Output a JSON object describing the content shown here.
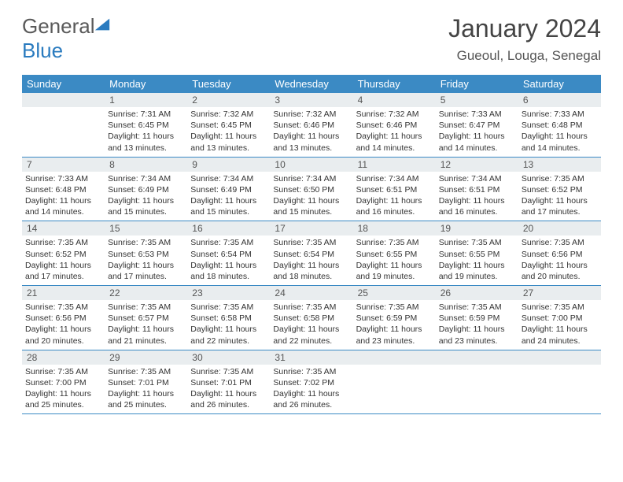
{
  "brand": {
    "text1": "General",
    "text2": "Blue"
  },
  "title": "January 2024",
  "location": "Gueoul, Louga, Senegal",
  "colors": {
    "header_bg": "#3b8ac4",
    "daynum_bg": "#e9edef",
    "text": "#333333",
    "brand_gray": "#5a5a5a",
    "brand_blue": "#2a7bbf"
  },
  "weekdays": [
    "Sunday",
    "Monday",
    "Tuesday",
    "Wednesday",
    "Thursday",
    "Friday",
    "Saturday"
  ],
  "weeks": [
    {
      "nums": [
        "",
        "1",
        "2",
        "3",
        "4",
        "5",
        "6"
      ],
      "cells": [
        null,
        {
          "sunrise": "Sunrise: 7:31 AM",
          "sunset": "Sunset: 6:45 PM",
          "daylight": "Daylight: 11 hours and 13 minutes."
        },
        {
          "sunrise": "Sunrise: 7:32 AM",
          "sunset": "Sunset: 6:45 PM",
          "daylight": "Daylight: 11 hours and 13 minutes."
        },
        {
          "sunrise": "Sunrise: 7:32 AM",
          "sunset": "Sunset: 6:46 PM",
          "daylight": "Daylight: 11 hours and 13 minutes."
        },
        {
          "sunrise": "Sunrise: 7:32 AM",
          "sunset": "Sunset: 6:46 PM",
          "daylight": "Daylight: 11 hours and 14 minutes."
        },
        {
          "sunrise": "Sunrise: 7:33 AM",
          "sunset": "Sunset: 6:47 PM",
          "daylight": "Daylight: 11 hours and 14 minutes."
        },
        {
          "sunrise": "Sunrise: 7:33 AM",
          "sunset": "Sunset: 6:48 PM",
          "daylight": "Daylight: 11 hours and 14 minutes."
        }
      ]
    },
    {
      "nums": [
        "7",
        "8",
        "9",
        "10",
        "11",
        "12",
        "13"
      ],
      "cells": [
        {
          "sunrise": "Sunrise: 7:33 AM",
          "sunset": "Sunset: 6:48 PM",
          "daylight": "Daylight: 11 hours and 14 minutes."
        },
        {
          "sunrise": "Sunrise: 7:34 AM",
          "sunset": "Sunset: 6:49 PM",
          "daylight": "Daylight: 11 hours and 15 minutes."
        },
        {
          "sunrise": "Sunrise: 7:34 AM",
          "sunset": "Sunset: 6:49 PM",
          "daylight": "Daylight: 11 hours and 15 minutes."
        },
        {
          "sunrise": "Sunrise: 7:34 AM",
          "sunset": "Sunset: 6:50 PM",
          "daylight": "Daylight: 11 hours and 15 minutes."
        },
        {
          "sunrise": "Sunrise: 7:34 AM",
          "sunset": "Sunset: 6:51 PM",
          "daylight": "Daylight: 11 hours and 16 minutes."
        },
        {
          "sunrise": "Sunrise: 7:34 AM",
          "sunset": "Sunset: 6:51 PM",
          "daylight": "Daylight: 11 hours and 16 minutes."
        },
        {
          "sunrise": "Sunrise: 7:35 AM",
          "sunset": "Sunset: 6:52 PM",
          "daylight": "Daylight: 11 hours and 17 minutes."
        }
      ]
    },
    {
      "nums": [
        "14",
        "15",
        "16",
        "17",
        "18",
        "19",
        "20"
      ],
      "cells": [
        {
          "sunrise": "Sunrise: 7:35 AM",
          "sunset": "Sunset: 6:52 PM",
          "daylight": "Daylight: 11 hours and 17 minutes."
        },
        {
          "sunrise": "Sunrise: 7:35 AM",
          "sunset": "Sunset: 6:53 PM",
          "daylight": "Daylight: 11 hours and 17 minutes."
        },
        {
          "sunrise": "Sunrise: 7:35 AM",
          "sunset": "Sunset: 6:54 PM",
          "daylight": "Daylight: 11 hours and 18 minutes."
        },
        {
          "sunrise": "Sunrise: 7:35 AM",
          "sunset": "Sunset: 6:54 PM",
          "daylight": "Daylight: 11 hours and 18 minutes."
        },
        {
          "sunrise": "Sunrise: 7:35 AM",
          "sunset": "Sunset: 6:55 PM",
          "daylight": "Daylight: 11 hours and 19 minutes."
        },
        {
          "sunrise": "Sunrise: 7:35 AM",
          "sunset": "Sunset: 6:55 PM",
          "daylight": "Daylight: 11 hours and 19 minutes."
        },
        {
          "sunrise": "Sunrise: 7:35 AM",
          "sunset": "Sunset: 6:56 PM",
          "daylight": "Daylight: 11 hours and 20 minutes."
        }
      ]
    },
    {
      "nums": [
        "21",
        "22",
        "23",
        "24",
        "25",
        "26",
        "27"
      ],
      "cells": [
        {
          "sunrise": "Sunrise: 7:35 AM",
          "sunset": "Sunset: 6:56 PM",
          "daylight": "Daylight: 11 hours and 20 minutes."
        },
        {
          "sunrise": "Sunrise: 7:35 AM",
          "sunset": "Sunset: 6:57 PM",
          "daylight": "Daylight: 11 hours and 21 minutes."
        },
        {
          "sunrise": "Sunrise: 7:35 AM",
          "sunset": "Sunset: 6:58 PM",
          "daylight": "Daylight: 11 hours and 22 minutes."
        },
        {
          "sunrise": "Sunrise: 7:35 AM",
          "sunset": "Sunset: 6:58 PM",
          "daylight": "Daylight: 11 hours and 22 minutes."
        },
        {
          "sunrise": "Sunrise: 7:35 AM",
          "sunset": "Sunset: 6:59 PM",
          "daylight": "Daylight: 11 hours and 23 minutes."
        },
        {
          "sunrise": "Sunrise: 7:35 AM",
          "sunset": "Sunset: 6:59 PM",
          "daylight": "Daylight: 11 hours and 23 minutes."
        },
        {
          "sunrise": "Sunrise: 7:35 AM",
          "sunset": "Sunset: 7:00 PM",
          "daylight": "Daylight: 11 hours and 24 minutes."
        }
      ]
    },
    {
      "nums": [
        "28",
        "29",
        "30",
        "31",
        "",
        "",
        ""
      ],
      "cells": [
        {
          "sunrise": "Sunrise: 7:35 AM",
          "sunset": "Sunset: 7:00 PM",
          "daylight": "Daylight: 11 hours and 25 minutes."
        },
        {
          "sunrise": "Sunrise: 7:35 AM",
          "sunset": "Sunset: 7:01 PM",
          "daylight": "Daylight: 11 hours and 25 minutes."
        },
        {
          "sunrise": "Sunrise: 7:35 AM",
          "sunset": "Sunset: 7:01 PM",
          "daylight": "Daylight: 11 hours and 26 minutes."
        },
        {
          "sunrise": "Sunrise: 7:35 AM",
          "sunset": "Sunset: 7:02 PM",
          "daylight": "Daylight: 11 hours and 26 minutes."
        },
        null,
        null,
        null
      ]
    }
  ]
}
